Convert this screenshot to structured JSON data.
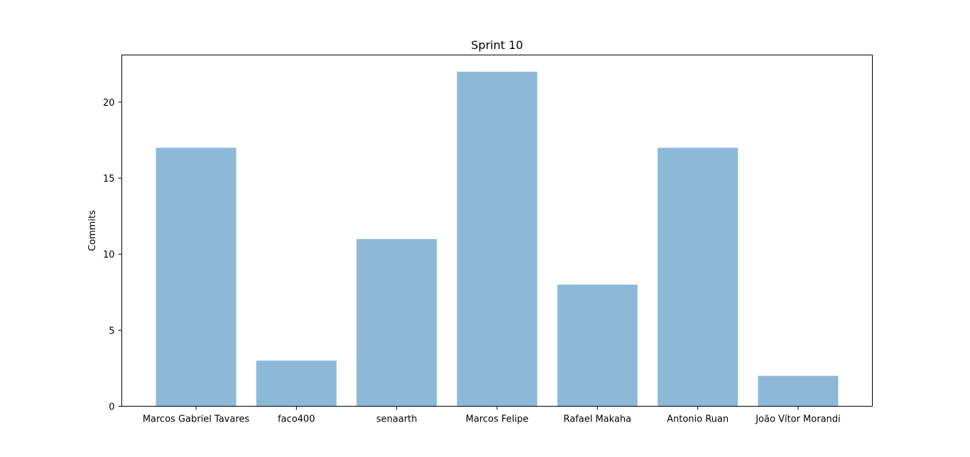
{
  "chart_data": {
    "type": "bar",
    "title": "Sprint 10",
    "xlabel": "",
    "ylabel": "Commits",
    "categories": [
      "Marcos Gabriel Tavares",
      "faco400",
      "senaarth",
      "Marcos Felipe",
      "Rafael Makaha",
      "Antonio Ruan",
      "João Vítor Morandi"
    ],
    "values": [
      17,
      3,
      11,
      22,
      8,
      17,
      2
    ],
    "ylim": [
      0,
      23.1
    ],
    "yticks": [
      0,
      5,
      10,
      15,
      20
    ],
    "grid": false,
    "bar_color": "#8db9d9"
  }
}
